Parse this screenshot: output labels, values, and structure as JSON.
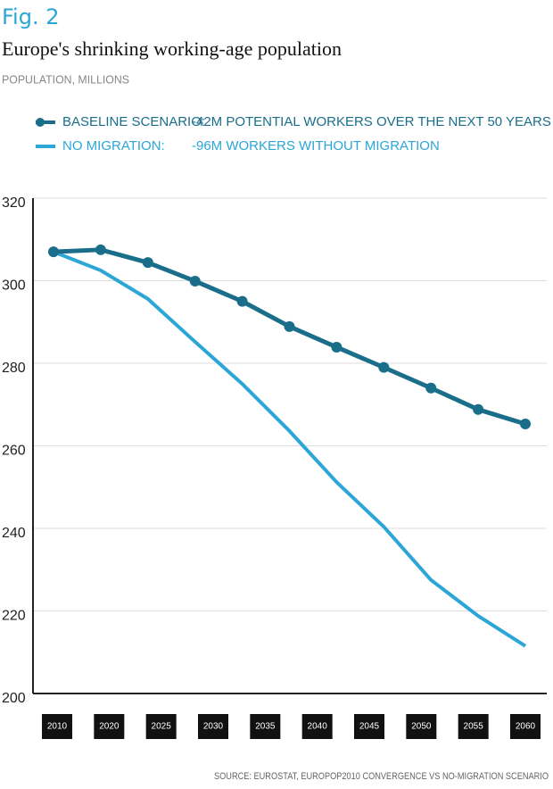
{
  "chart_data": {
    "type": "line",
    "figure_label": "Fig. 2",
    "title": "Europe's shrinking working-age population",
    "subtitle": "POPULATION, MILLIONS",
    "source": "SOURCE: EUROSTAT, EUROPOP2010 CONVERGENCE VS NO-MIGRATION SCENARIO",
    "categories": [
      "2010",
      null,
      "2020",
      "2025",
      "2030",
      "2035",
      "2040",
      "2045",
      "2050",
      "2055",
      "2060"
    ],
    "series": [
      {
        "name": "BASELINE SCENARIO:",
        "description": "-42M POTENTIAL WORKERS OVER THE NEXT 50 YEARS",
        "color": "#1a6e8a",
        "values": [
          307,
          307.5,
          304.4,
          299.9,
          295,
          288.9,
          283.9,
          279,
          274,
          268.8,
          265.3
        ],
        "markers": true
      },
      {
        "name": "NO MIGRATION:",
        "description": "-96M WORKERS WITHOUT MIGRATION",
        "color": "#2ba6d6",
        "values": [
          307,
          302.5,
          295.6,
          285.2,
          275,
          263.6,
          251.2,
          240.4,
          227.5,
          218.8,
          211.5
        ],
        "markers": false
      }
    ],
    "ylim": [
      200,
      320
    ],
    "yticks": [
      200,
      220,
      240,
      260,
      280,
      300,
      320
    ],
    "grid": true
  }
}
